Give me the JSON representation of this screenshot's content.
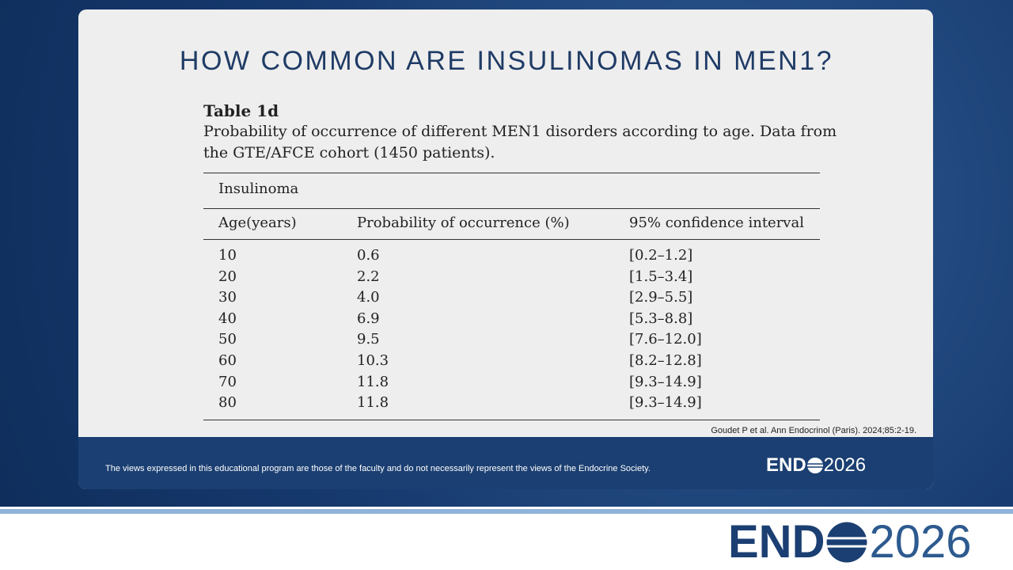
{
  "slide": {
    "title": "HOW COMMON ARE INSULINOMAS IN MEN1?",
    "table_label": "Table 1d",
    "caption_lines": [
      "Probability of occurrence of different MEN1 disorders according to age. Data from",
      "the GTE/AFCE cohort (1450 patients)."
    ],
    "group": "Insulinoma",
    "headers": [
      "Age(years)",
      "Probability of occurrence (%)",
      "95% confidence interval"
    ],
    "rows": [
      [
        "10",
        "0.6",
        "[0.2–1.2]"
      ],
      [
        "20",
        "2.2",
        "[1.5–3.4]"
      ],
      [
        "30",
        "4.0",
        "[2.9–5.5]"
      ],
      [
        "40",
        "6.9",
        "[5.3–8.8]"
      ],
      [
        "50",
        "9.5",
        "[7.6–12.0]"
      ],
      [
        "60",
        "10.3",
        "[8.2–12.8]"
      ],
      [
        "70",
        "11.8",
        "[9.3–14.9]"
      ],
      [
        "80",
        "11.8",
        "[9.3–14.9]"
      ]
    ],
    "citation": "Goudet P et al. Ann Endocrinol (Paris). 2024;85:2-19.",
    "disclaimer": "The views expressed in this educational program are those of the faculty and do not necessarily represent the views of the Endocrine Society.",
    "logo": {
      "prefix": "END",
      "year": "2026"
    }
  }
}
